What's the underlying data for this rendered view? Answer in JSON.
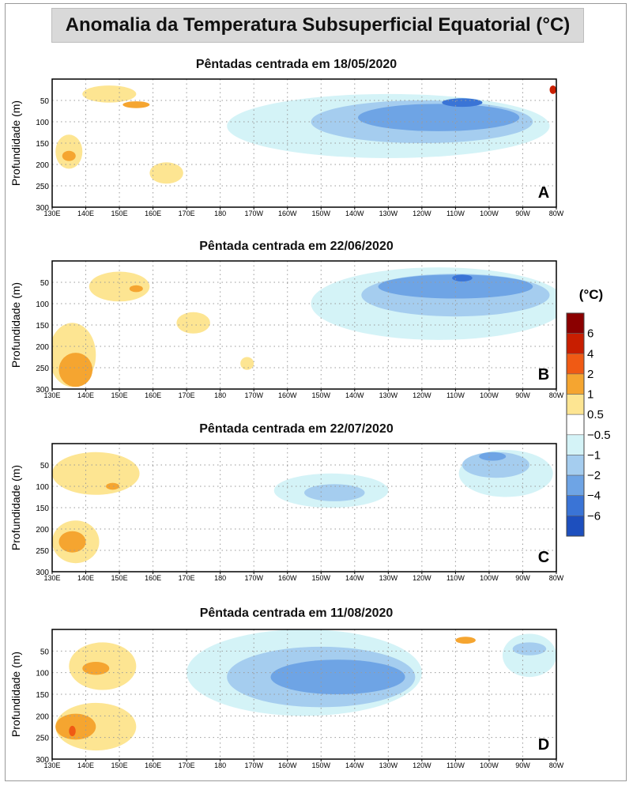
{
  "title": "Anomalia da Temperatura Subsuperficial Equatorial (°C)",
  "legend": {
    "unit": "(°C)",
    "labels": [
      "6",
      "4",
      "2",
      "1",
      "0.5",
      "−0.5",
      "−1",
      "−2",
      "−4",
      "−6"
    ],
    "colors": [
      "#8b0000",
      "#c81e00",
      "#f05a14",
      "#f5a530",
      "#fde592",
      "#ffffff",
      "#d4f3f7",
      "#a5cdef",
      "#6ea4e5",
      "#3a74d6",
      "#1d4fbe"
    ]
  },
  "chart_data": [
    {
      "type": "heatmap",
      "panel": "A",
      "title": "Pêntadas centrada em 18/05/2020",
      "ylabel": "Profundidade (m)",
      "x_ticks": [
        "130E",
        "140E",
        "150E",
        "160E",
        "170E",
        "180",
        "170W",
        "160W",
        "150W",
        "140W",
        "130W",
        "120W",
        "110W",
        "100W",
        "90W",
        "80W"
      ],
      "y_ticks": [
        "50",
        "100",
        "150",
        "200",
        "250",
        "300"
      ],
      "xlim": [
        130,
        280
      ],
      "ylim": [
        300,
        0
      ],
      "anomalies": [
        {
          "value": 0.5,
          "lon": 147,
          "depth": 35,
          "rlon": 8,
          "rdepth": 20
        },
        {
          "value": 1,
          "lon": 155,
          "depth": 60,
          "rlon": 4,
          "rdepth": 8
        },
        {
          "value": 0.5,
          "lon": 135,
          "depth": 170,
          "rlon": 4,
          "rdepth": 40
        },
        {
          "value": 1,
          "lon": 135,
          "depth": 180,
          "rlon": 2,
          "rdepth": 12
        },
        {
          "value": 0.5,
          "lon": 164,
          "depth": 220,
          "rlon": 5,
          "rdepth": 25
        },
        {
          "value": -0.5,
          "lon": 230,
          "depth": 110,
          "rlon": 48,
          "rdepth": 75
        },
        {
          "value": -1,
          "lon": 240,
          "depth": 100,
          "rlon": 33,
          "rdepth": 50
        },
        {
          "value": -2,
          "lon": 245,
          "depth": 90,
          "rlon": 24,
          "rdepth": 32
        },
        {
          "value": -4,
          "lon": 252,
          "depth": 55,
          "rlon": 6,
          "rdepth": 10
        },
        {
          "value": 4,
          "lon": 279,
          "depth": 25,
          "rlon": 1,
          "rdepth": 10
        }
      ]
    },
    {
      "type": "heatmap",
      "panel": "B",
      "title": "Pêntada centrada em 22/06/2020",
      "ylabel": "Profundidade (m)",
      "x_ticks": [
        "130E",
        "140E",
        "150E",
        "160E",
        "170E",
        "180",
        "170W",
        "160W",
        "150W",
        "140W",
        "130W",
        "120W",
        "110W",
        "100W",
        "90W",
        "80W"
      ],
      "y_ticks": [
        "50",
        "100",
        "150",
        "200",
        "250",
        "300"
      ],
      "xlim": [
        130,
        280
      ],
      "ylim": [
        300,
        0
      ],
      "anomalies": [
        {
          "value": 0.5,
          "lon": 150,
          "depth": 60,
          "rlon": 9,
          "rdepth": 35
        },
        {
          "value": 1,
          "lon": 155,
          "depth": 65,
          "rlon": 2,
          "rdepth": 8
        },
        {
          "value": 0.5,
          "lon": 136,
          "depth": 220,
          "rlon": 7,
          "rdepth": 75
        },
        {
          "value": 1,
          "lon": 137,
          "depth": 255,
          "rlon": 5,
          "rdepth": 40
        },
        {
          "value": 0.5,
          "lon": 172,
          "depth": 145,
          "rlon": 5,
          "rdepth": 25
        },
        {
          "value": 0.5,
          "lon": 188,
          "depth": 240,
          "rlon": 2,
          "rdepth": 15
        },
        {
          "value": -0.5,
          "lon": 245,
          "depth": 100,
          "rlon": 38,
          "rdepth": 85
        },
        {
          "value": -1,
          "lon": 250,
          "depth": 80,
          "rlon": 28,
          "rdepth": 50
        },
        {
          "value": -2,
          "lon": 250,
          "depth": 60,
          "rlon": 23,
          "rdepth": 28
        },
        {
          "value": -4,
          "lon": 252,
          "depth": 40,
          "rlon": 3,
          "rdepth": 8
        }
      ]
    },
    {
      "type": "heatmap",
      "panel": "C",
      "title": "Pêntada centrada em 22/07/2020",
      "ylabel": "Profundidade (m)",
      "x_ticks": [
        "130E",
        "140E",
        "150E",
        "160E",
        "170E",
        "180",
        "170W",
        "160W",
        "150W",
        "140W",
        "130W",
        "120W",
        "110W",
        "100W",
        "90W",
        "80W"
      ],
      "y_ticks": [
        "50",
        "100",
        "150",
        "200",
        "250",
        "300"
      ],
      "xlim": [
        130,
        280
      ],
      "ylim": [
        300,
        0
      ],
      "anomalies": [
        {
          "value": 0.5,
          "lon": 143,
          "depth": 70,
          "rlon": 13,
          "rdepth": 50
        },
        {
          "value": 1,
          "lon": 148,
          "depth": 100,
          "rlon": 2,
          "rdepth": 8
        },
        {
          "value": 0.5,
          "lon": 137,
          "depth": 230,
          "rlon": 7,
          "rdepth": 50
        },
        {
          "value": 1,
          "lon": 136,
          "depth": 230,
          "rlon": 4,
          "rdepth": 25
        },
        {
          "value": -0.5,
          "lon": 213,
          "depth": 110,
          "rlon": 17,
          "rdepth": 40
        },
        {
          "value": -1,
          "lon": 214,
          "depth": 115,
          "rlon": 9,
          "rdepth": 20
        },
        {
          "value": -0.5,
          "lon": 265,
          "depth": 70,
          "rlon": 14,
          "rdepth": 55
        },
        {
          "value": -1,
          "lon": 262,
          "depth": 50,
          "rlon": 10,
          "rdepth": 30
        },
        {
          "value": -2,
          "lon": 261,
          "depth": 30,
          "rlon": 4,
          "rdepth": 10
        }
      ]
    },
    {
      "type": "heatmap",
      "panel": "D",
      "title": "Pêntada centrada em 11/08/2020",
      "ylabel": "Profundidade (m)",
      "x_ticks": [
        "130E",
        "140E",
        "150E",
        "160E",
        "170E",
        "180",
        "170W",
        "160W",
        "150W",
        "140W",
        "130W",
        "120W",
        "110W",
        "100W",
        "90W",
        "80W"
      ],
      "y_ticks": [
        "50",
        "100",
        "150",
        "200",
        "250",
        "300"
      ],
      "xlim": [
        130,
        280
      ],
      "ylim": [
        300,
        0
      ],
      "anomalies": [
        {
          "value": 0.5,
          "lon": 145,
          "depth": 85,
          "rlon": 10,
          "rdepth": 55
        },
        {
          "value": 1,
          "lon": 143,
          "depth": 90,
          "rlon": 4,
          "rdepth": 15
        },
        {
          "value": 0.5,
          "lon": 143,
          "depth": 225,
          "rlon": 12,
          "rdepth": 55
        },
        {
          "value": 1,
          "lon": 137,
          "depth": 225,
          "rlon": 6,
          "rdepth": 30
        },
        {
          "value": 2,
          "lon": 136,
          "depth": 235,
          "rlon": 1,
          "rdepth": 12
        },
        {
          "value": -0.5,
          "lon": 205,
          "depth": 100,
          "rlon": 35,
          "rdepth": 100
        },
        {
          "value": -1,
          "lon": 210,
          "depth": 110,
          "rlon": 28,
          "rdepth": 70
        },
        {
          "value": -2,
          "lon": 215,
          "depth": 110,
          "rlon": 20,
          "rdepth": 40
        },
        {
          "value": 1,
          "lon": 253,
          "depth": 25,
          "rlon": 3,
          "rdepth": 8
        },
        {
          "value": -0.5,
          "lon": 272,
          "depth": 60,
          "rlon": 8,
          "rdepth": 50
        },
        {
          "value": -1,
          "lon": 272,
          "depth": 45,
          "rlon": 5,
          "rdepth": 15
        }
      ]
    }
  ]
}
